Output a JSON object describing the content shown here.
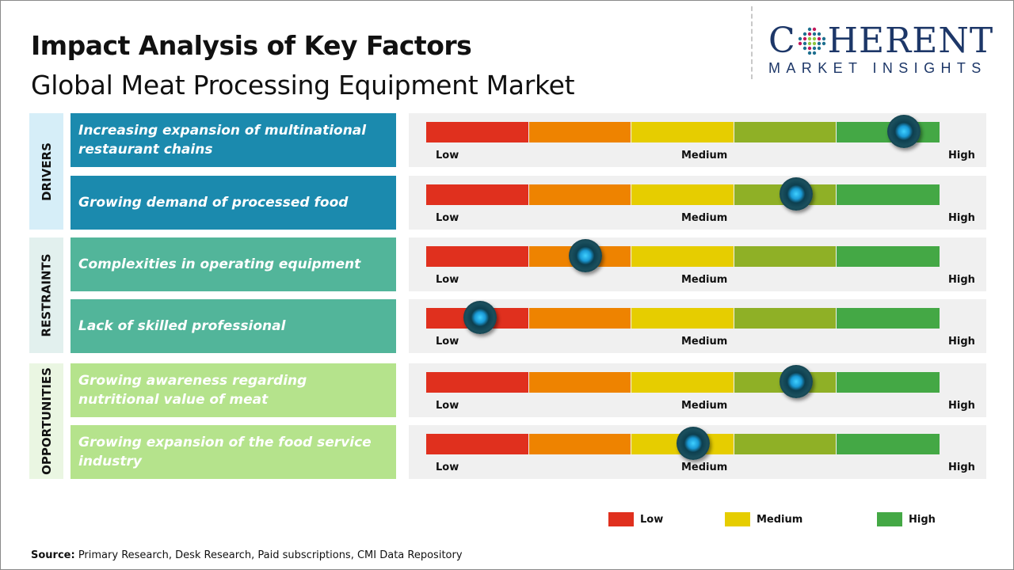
{
  "header": {
    "title": "Impact Analysis of Key Factors",
    "subtitle": "Global Meat Processing Equipment Market"
  },
  "logo": {
    "main_left": "C",
    "main_right": "HERENT",
    "sub": "MARKET INSIGHTS"
  },
  "colors": {
    "low": "#e0301e",
    "low_mid": "#ee8300",
    "medium": "#e6cd00",
    "mid_high": "#8fb026",
    "high": "#44a845",
    "drivers": "#1b8aae",
    "restraints": "#52b59a",
    "opportunities": "#b5e38c",
    "drivers_cat": "#d6eef8",
    "restraints_cat": "#e2f0ee",
    "opportunities_cat": "#eaf6e2"
  },
  "chart_data": {
    "type": "gauge",
    "scale_labels": [
      "Low",
      "Medium",
      "High"
    ],
    "legend": [
      {
        "label": "Low",
        "color": "#e0301e"
      },
      {
        "label": "Medium",
        "color": "#e6cd00"
      },
      {
        "label": "High",
        "color": "#44a845"
      }
    ],
    "categories": [
      {
        "name": "DRIVERS",
        "factors": [
          {
            "label": "Increasing expansion of multinational restaurant chains",
            "impact": 0.93
          },
          {
            "label": "Growing demand of processed food",
            "impact": 0.72
          }
        ]
      },
      {
        "name": "RESTRAINTS",
        "factors": [
          {
            "label": "Complexities in operating equipment",
            "impact": 0.31
          },
          {
            "label": "Lack of skilled professional",
            "impact": 0.105
          }
        ]
      },
      {
        "name": "OPPORTUNITIES",
        "factors": [
          {
            "label": "Growing awareness regarding nutritional value of meat",
            "impact": 0.72
          },
          {
            "label": "Growing expansion of the food service industry",
            "impact": 0.52
          }
        ]
      }
    ]
  },
  "footer": {
    "source_label": "Source:",
    "source_text": " Primary Research, Desk Research, Paid subscriptions, CMI Data Repository"
  }
}
